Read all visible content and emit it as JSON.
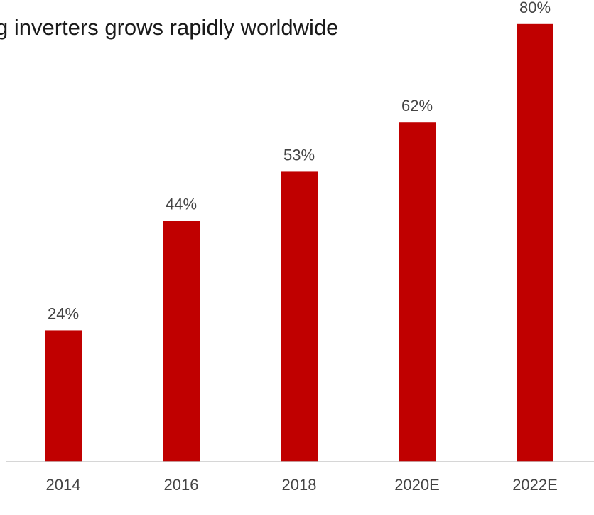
{
  "chart_data": {
    "type": "bar",
    "title": "g inverters grows rapidly worldwide",
    "categories": [
      "2014",
      "2016",
      "2018",
      "2020E",
      "2022E"
    ],
    "values": [
      24,
      44,
      53,
      62,
      80
    ],
    "value_labels": [
      "24%",
      "44%",
      "53%",
      "62%",
      "80%"
    ],
    "unit": "%",
    "ylim": [
      0,
      85
    ],
    "xlabel": "",
    "ylabel": "",
    "grid": false,
    "legend": "none",
    "bar_color": "#c00000"
  }
}
